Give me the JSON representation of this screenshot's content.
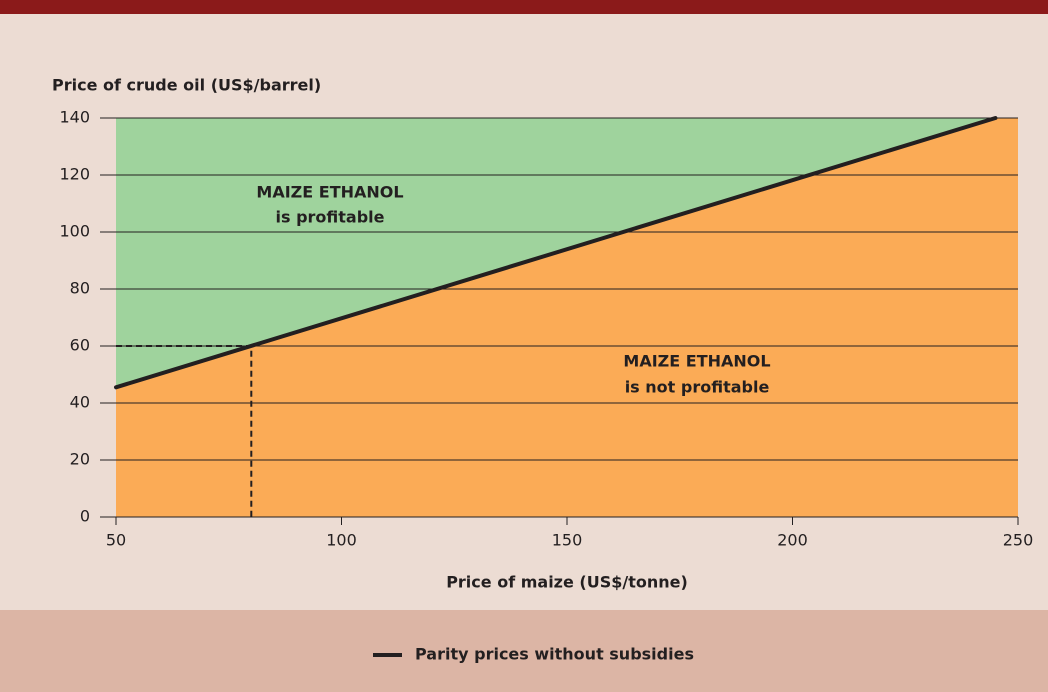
{
  "chart_data": {
    "type": "line",
    "xlabel": "Price of maize (US$/tonne)",
    "ylabel": "Price of crude oil (US$/barrel)",
    "series": [
      {
        "name": "Parity prices without subsidies",
        "color": "#231f20",
        "x": [
          50,
          245
        ],
        "values": [
          45.5,
          140
        ]
      }
    ],
    "reference_point": {
      "x": 80,
      "y": 60
    },
    "regions": {
      "above": {
        "color": "#9fd39d",
        "label": [
          "MAIZE ETHANOL",
          "is profitable"
        ]
      },
      "below": {
        "color": "#fbab56",
        "label": [
          "MAIZE ETHANOL",
          "is not profitable"
        ]
      }
    },
    "xlim": [
      50,
      250
    ],
    "xticks": [
      50,
      100,
      150,
      200,
      250
    ],
    "ylim": [
      0,
      140
    ],
    "yticks": [
      0,
      20,
      40,
      60,
      80,
      100,
      120,
      140
    ],
    "grid": true,
    "legend": "bottom"
  }
}
